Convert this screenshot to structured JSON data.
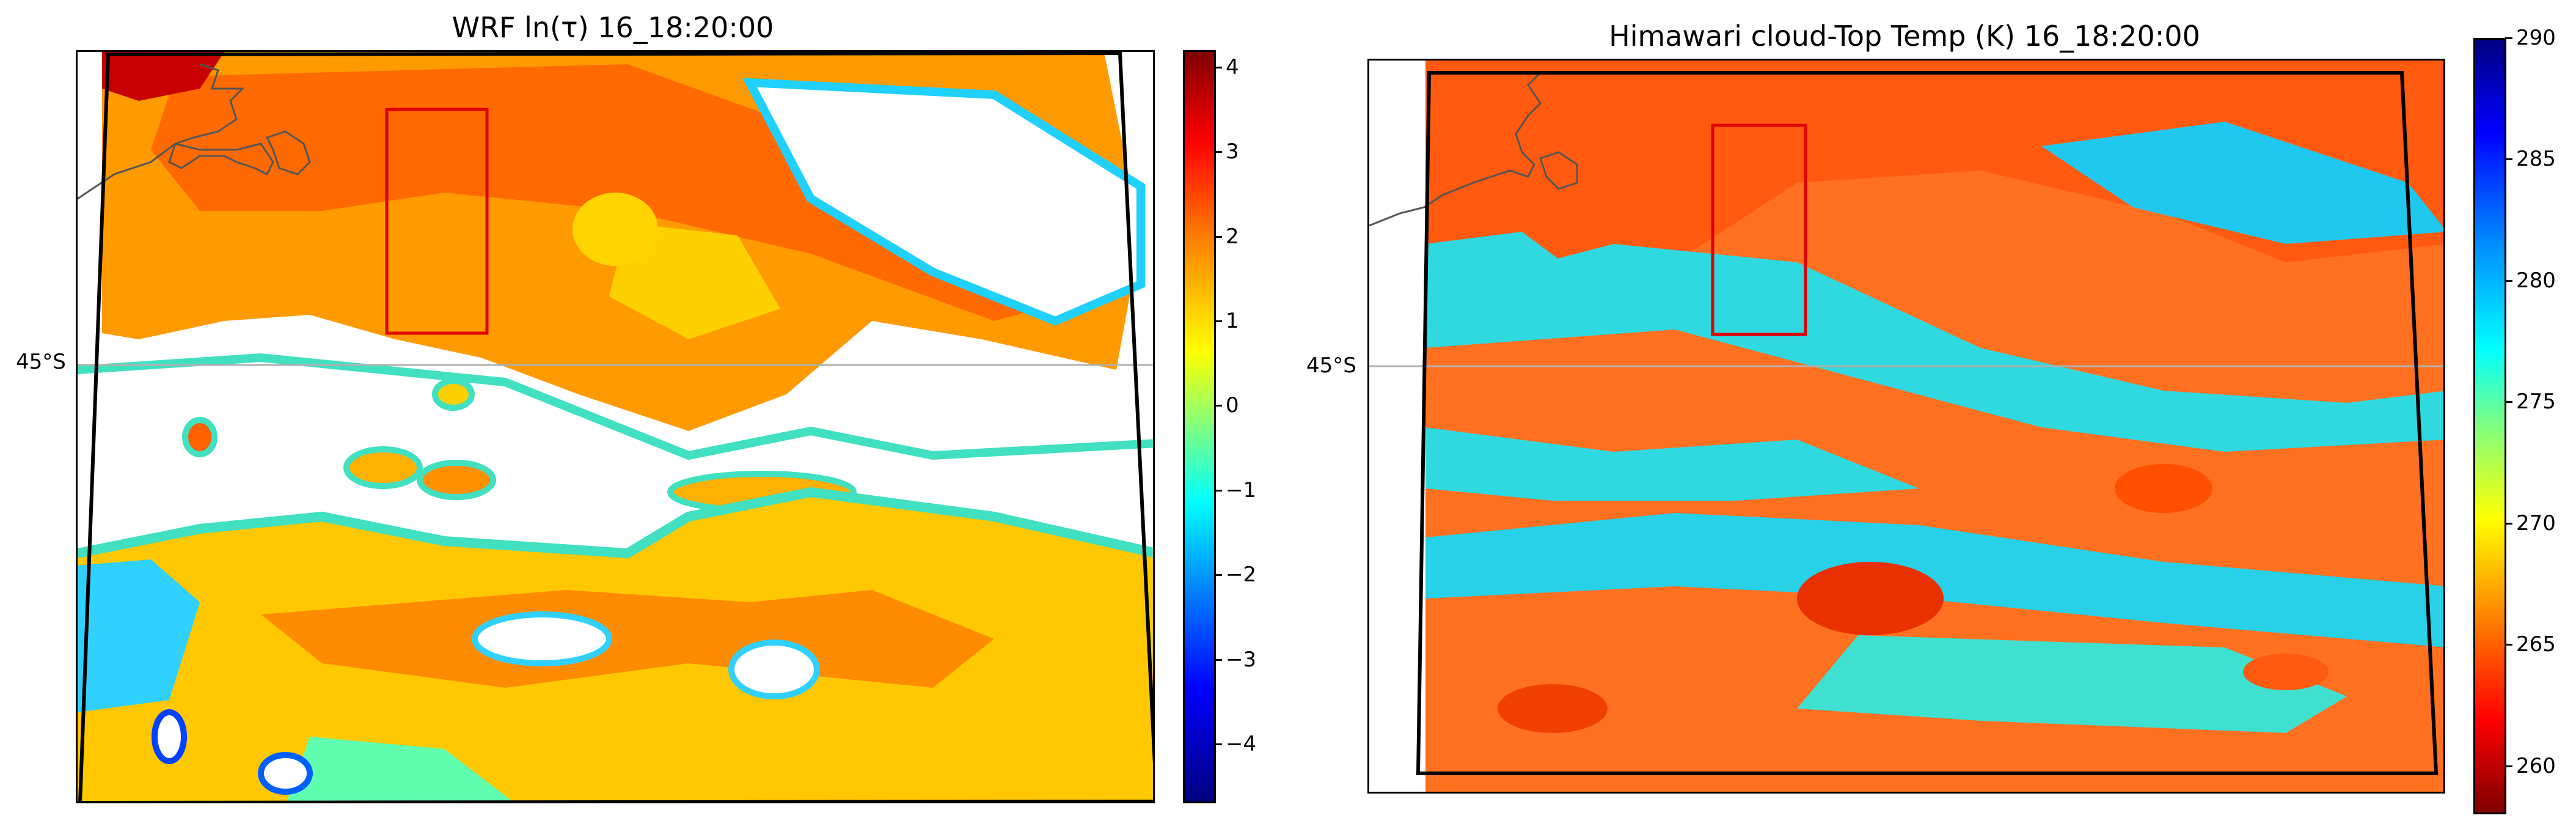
{
  "left_panel": {
    "title": "WRF ln(τ) 16_18:20:00",
    "lat_label": "45°S",
    "colorbar_ticks": [
      "4",
      "3",
      "2",
      "1",
      "0",
      "−1",
      "−2",
      "−3",
      "−4"
    ],
    "colorbar_min": -4.7,
    "colorbar_max": 4.2,
    "colormap": "jet"
  },
  "right_panel": {
    "title": "Himawari cloud-Top Temp (K) 16_18:20:00",
    "lat_label": "45°S",
    "colorbar_ticks": [
      "290",
      "285",
      "280",
      "275",
      "270",
      "265",
      "260"
    ],
    "colorbar_min": 258,
    "colorbar_max": 290,
    "colormap": "jet_r"
  },
  "colors": {
    "highlight_box": "#e00000",
    "domain_outline": "#000000",
    "coastline": "#555555",
    "gridline": "#b0b0b0"
  }
}
